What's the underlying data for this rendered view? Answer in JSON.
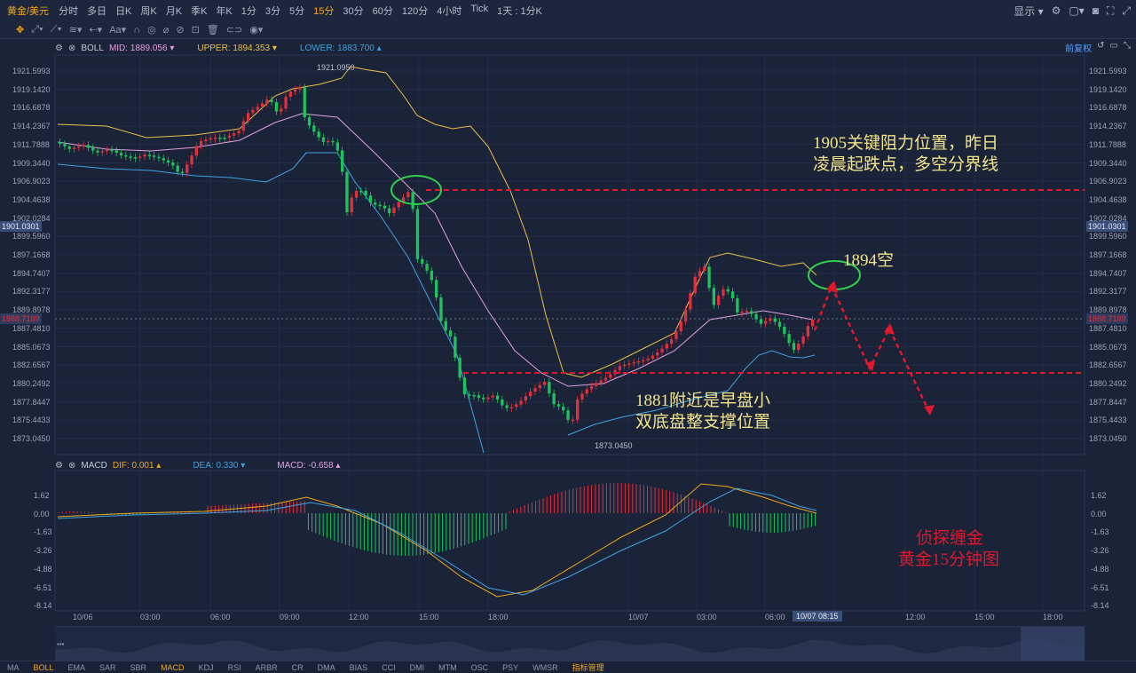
{
  "toolbar": {
    "symbol": "黄金/美元",
    "timeframes": [
      "分时",
      "多日",
      "日K",
      "周K",
      "月K",
      "季K",
      "年K",
      "1分",
      "3分",
      "5分",
      "15分",
      "30分",
      "60分",
      "120分",
      "4小时",
      "Tick",
      "1天 : 1分K"
    ],
    "active": "15分",
    "display_label": "显示",
    "drawing_tools": [
      "crosshair-icon",
      "trend-line-icon",
      "pattern-icon",
      "arrow-icon",
      "text-icon",
      "magnet-icon",
      "eye-icon",
      "lock-icon",
      "trash-icon",
      "hide-icon",
      "eye-off-icon"
    ]
  },
  "boll": {
    "name": "BOLL",
    "mid": "MID: 1889.056",
    "upper": "UPPER: 1894.353",
    "lower": "LOWER: 1883.700",
    "mid_color": "#e3a0e0",
    "upper_color": "#e8c04a",
    "lower_color": "#3fa3e0",
    "restore": "前复权"
  },
  "macd": {
    "name": "MACD",
    "dif": "DIF: 0.001",
    "dea": "DEA: 0.330",
    "macd": "MACD: -0.658"
  },
  "price_axis": [
    "1921.5993",
    "1919.1420",
    "1916.6878",
    "1914.2367",
    "1911.7888",
    "1909.3440",
    "1906.9023",
    "1904.4638",
    "1902.0284",
    "1899.5960",
    "1897.1668",
    "1894.7407",
    "1892.3177",
    "1889.8978",
    "1887.4810",
    "1885.0673",
    "1882.6567",
    "1880.2492",
    "1877.8447",
    "1875.4433",
    "1873.0450"
  ],
  "price_tags": {
    "left_blue": "1901.0301",
    "right_blue": "1901.0301",
    "left_red": "1888.7189",
    "right_red": "1888.7189"
  },
  "macd_axis": [
    "1.62",
    "0.00",
    "-1.63",
    "-3.26",
    "-4.88",
    "-6.51",
    "-8.14"
  ],
  "time_axis": [
    "10/06",
    "03:00",
    "06:00",
    "09:00",
    "12:00",
    "15:00",
    "18:00",
    "10/07",
    "03:00",
    "06:00",
    "10/07 08:15",
    "12:00",
    "15:00",
    "18:00"
  ],
  "extrema": {
    "high": "1921.0950",
    "low": "1873.0450"
  },
  "annotations": {
    "resistance": [
      "1905关键阻力位置，昨日",
      "凌晨起跌点，多空分界线"
    ],
    "short": "1894空",
    "support": [
      "1881附近是早盘小",
      "双底盘整支撑位置"
    ],
    "watermark": [
      "侦探缠金",
      "黄金15分钟图"
    ]
  },
  "bottom_tabs": [
    "MA",
    "BOLL",
    "EMA",
    "SAR",
    "SBR",
    "MACD",
    "KDJ",
    "RSI",
    "ARBR",
    "CR",
    "DMA",
    "BIAS",
    "CCI",
    "DMI",
    "MTM",
    "OSC",
    "PSY",
    "WMSR",
    "指标管理"
  ],
  "colors": {
    "up": "#e0303c",
    "down": "#1fc35c",
    "annot_yellow": "#f2e48a",
    "annot_red": "#e0182e",
    "circle": "#2fd24e",
    "bg": "#1b2339"
  }
}
